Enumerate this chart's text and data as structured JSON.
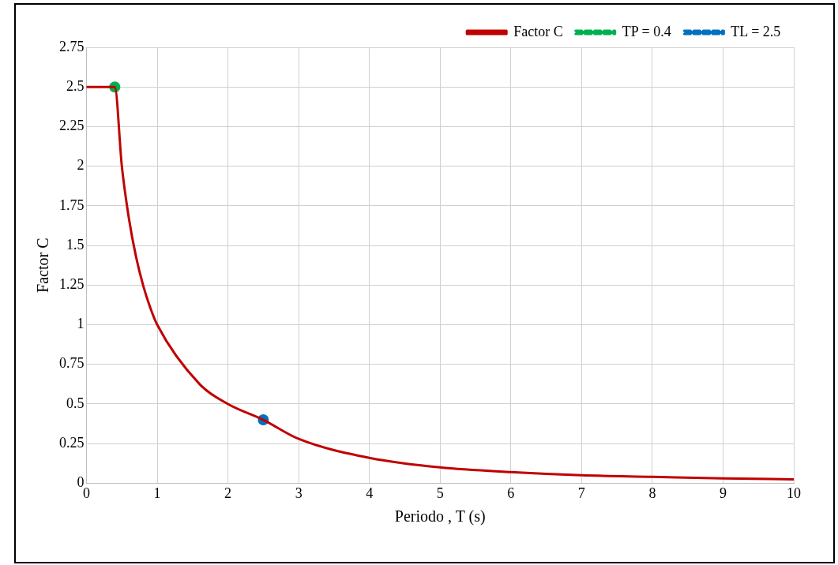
{
  "chart_data": {
    "type": "line",
    "xlabel": "Periodo , T (s)",
    "ylabel": "Factor C",
    "xlim": [
      0,
      10
    ],
    "xticks": [
      0,
      1,
      2,
      3,
      4,
      5,
      6,
      7,
      8,
      9,
      10
    ],
    "ylim": [
      0,
      2.75
    ],
    "yticks": [
      0,
      0.25,
      0.5,
      0.75,
      1,
      1.25,
      1.5,
      1.75,
      2,
      2.25,
      2.5,
      2.75
    ],
    "grid": true,
    "legend": "top right",
    "series": [
      {
        "name": "Factor C",
        "color": "#c00000",
        "marker": "none",
        "line_style": "solid",
        "x": [
          0,
          0.4,
          0.5,
          0.6,
          0.7,
          0.8,
          0.9,
          1,
          1.6,
          2,
          2.5,
          3,
          4,
          5,
          6,
          7,
          8,
          9,
          10
        ],
        "values": [
          2.5,
          2.5,
          2.0,
          1.67,
          1.43,
          1.25,
          1.11,
          1.0,
          0.625,
          0.5,
          0.4,
          0.28,
          0.16,
          0.1,
          0.07,
          0.05,
          0.04,
          0.03,
          0.025
        ]
      },
      {
        "name": "TP = 0.4",
        "color": "#00b050",
        "marker": "circle",
        "line_style": "dashed",
        "x": [
          0.4
        ],
        "values": [
          2.5
        ]
      },
      {
        "name": "TL = 2.5",
        "color": "#0070c0",
        "marker": "circle",
        "line_style": "dashed",
        "x": [
          2.5
        ],
        "values": [
          0.4
        ]
      }
    ]
  }
}
